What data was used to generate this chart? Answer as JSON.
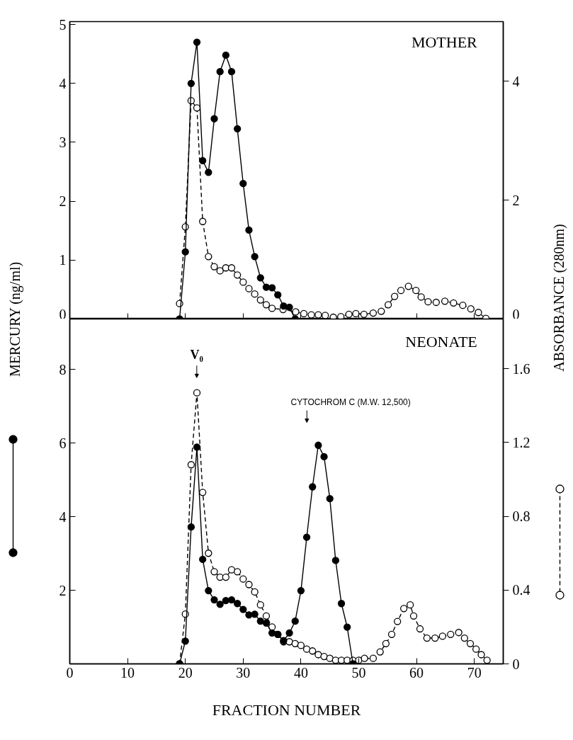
{
  "chart_data": [
    {
      "type": "line",
      "title": "MOTHER",
      "ylabel": "MERCURY (ng/ml)",
      "y2label": "ABSORBANCE (280nm)",
      "xlim": [
        0,
        75
      ],
      "xticks": [
        0,
        10,
        20,
        30,
        40,
        50,
        60,
        70
      ],
      "ylim": [
        0,
        5.05
      ],
      "yticks": [
        0,
        1,
        2,
        3,
        4,
        5
      ],
      "y2lim": [
        0,
        5
      ],
      "y2ticks": [
        0,
        2,
        4
      ],
      "tick_labels": "y",
      "marker": "circle",
      "grid": false,
      "series": [
        {
          "color": "#000000",
          "line_style": "solid",
          "x": [
            19,
            20,
            21,
            22,
            23,
            24,
            25,
            26,
            27,
            28,
            29,
            30,
            31,
            32,
            33,
            34,
            35,
            36,
            37,
            38,
            39
          ],
          "values": [
            0.0,
            1.14,
            4.0,
            4.7,
            2.69,
            2.49,
            3.4,
            4.2,
            4.48,
            4.2,
            3.23,
            2.3,
            1.51,
            1.06,
            0.7,
            0.54,
            0.53,
            0.41,
            0.22,
            0.2,
            0.0
          ]
        },
        {
          "color": "#000000",
          "line_style": "dashed",
          "axis": "y2",
          "x": [
            19,
            20,
            21,
            22,
            23,
            24,
            25,
            26,
            27,
            28,
            29,
            30,
            31,
            32,
            33,
            34,
            35,
            36.9,
            39.1,
            40.5,
            41.8,
            43,
            44.2,
            45.6,
            46.9,
            48.3,
            49.5,
            50.9,
            52.5,
            53.9,
            55.1,
            56.2,
            57.3,
            58.6,
            59.9,
            60.8,
            62,
            63.4,
            64.9,
            66.4,
            68,
            69.4,
            70.7,
            72
          ],
          "values": [
            0.26,
            1.55,
            3.67,
            3.55,
            1.64,
            1.05,
            0.88,
            0.81,
            0.86,
            0.86,
            0.74,
            0.62,
            0.51,
            0.42,
            0.32,
            0.24,
            0.18,
            0.16,
            0.12,
            0.09,
            0.07,
            0.07,
            0.06,
            0.03,
            0.04,
            0.08,
            0.09,
            0.08,
            0.1,
            0.13,
            0.24,
            0.38,
            0.48,
            0.55,
            0.48,
            0.37,
            0.29,
            0.28,
            0.3,
            0.27,
            0.23,
            0.17,
            0.11,
            0.01
          ]
        }
      ]
    },
    {
      "type": "line",
      "title": "NEONATE",
      "xlabel": "FRACTION NUMBER",
      "xlim": [
        0,
        75
      ],
      "xticks": [
        0,
        10,
        20,
        30,
        40,
        50,
        60,
        70
      ],
      "ylim": [
        0,
        9.37
      ],
      "yticks": [
        2,
        4,
        6,
        8
      ],
      "y2lim": [
        0,
        1.87
      ],
      "y2ticks": [
        0,
        0.4,
        0.8,
        1.2,
        1.6
      ],
      "marker": "circle",
      "grid": false,
      "annotations": [
        "V₀",
        "CYTOCHROM C (M.W. 12,500)"
      ],
      "series": [
        {
          "color": "#000000",
          "line_style": "solid",
          "x": [
            19,
            20,
            21,
            22,
            23,
            24,
            25,
            26,
            27,
            28,
            29,
            30,
            31,
            32,
            33,
            34,
            35,
            36,
            37,
            38,
            39,
            40,
            41,
            42,
            43,
            44,
            45,
            46,
            47,
            48,
            49
          ],
          "values": [
            0.0,
            0.62,
            3.72,
            5.89,
            2.84,
            1.99,
            1.74,
            1.62,
            1.72,
            1.74,
            1.64,
            1.48,
            1.33,
            1.35,
            1.16,
            1.11,
            0.84,
            0.8,
            0.63,
            0.84,
            1.16,
            1.99,
            3.44,
            4.81,
            5.94,
            5.63,
            4.49,
            2.81,
            1.64,
            1.0,
            0.0
          ]
        },
        {
          "color": "#000000",
          "line_style": "dashed",
          "axis": "y2",
          "x": [
            19,
            20,
            21,
            22,
            23,
            24,
            25,
            26,
            27,
            28,
            29,
            30,
            31,
            32,
            33,
            34,
            35,
            36,
            37,
            38,
            39,
            40,
            41,
            42,
            43,
            44,
            45,
            46,
            47,
            48,
            49,
            50,
            51,
            52.5,
            53.7,
            54.7,
            55.7,
            56.7,
            57.8,
            58.9,
            59.5,
            60.6,
            61.8,
            63.2,
            64.5,
            65.9,
            67.3,
            68.3,
            69.3,
            70.3,
            71.2,
            72.2
          ],
          "values": [
            0.0,
            0.27,
            1.08,
            1.47,
            0.93,
            0.6,
            0.5,
            0.47,
            0.47,
            0.51,
            0.5,
            0.46,
            0.43,
            0.39,
            0.32,
            0.26,
            0.2,
            0.16,
            0.12,
            0.12,
            0.11,
            0.1,
            0.08,
            0.07,
            0.05,
            0.04,
            0.03,
            0.02,
            0.02,
            0.02,
            0.02,
            0.02,
            0.03,
            0.03,
            0.065,
            0.11,
            0.16,
            0.23,
            0.3,
            0.32,
            0.26,
            0.19,
            0.14,
            0.14,
            0.15,
            0.16,
            0.17,
            0.14,
            0.11,
            0.08,
            0.05,
            0.02
          ]
        }
      ]
    }
  ]
}
